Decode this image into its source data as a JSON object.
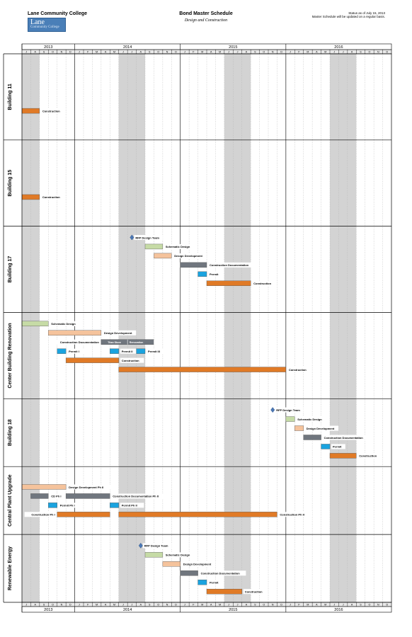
{
  "header": {
    "org": "Lane Community College",
    "logo": {
      "line1": "Lane",
      "line2": "Community College"
    },
    "title": "Bond Master Schedule",
    "subtitle": "Design and Construction",
    "status_line1": "Status as of July 15, 2013",
    "status_line2": "Master Schedule will be updated on a regular basis."
  },
  "colors": {
    "construction": "#e07a26",
    "schematic": "#c6dba6",
    "design": "#f5c39c",
    "docs": "#70767e",
    "permit": "#1aa3df",
    "milestone": "#4a77b5",
    "shade": "#d3d3d3"
  },
  "chart_data": {
    "type": "gantt",
    "timeline_start": "2013-07",
    "timeline_end": "2016-12",
    "month_letters": [
      "J",
      "F",
      "M",
      "A",
      "M",
      "J",
      "J",
      "A",
      "S",
      "O",
      "N",
      "D"
    ],
    "years": [
      {
        "label": "2013",
        "start": "2013-07",
        "end": "2013-12"
      },
      {
        "label": "2014",
        "start": "2014-01",
        "end": "2014-12"
      },
      {
        "label": "2015",
        "start": "2015-01",
        "end": "2015-12"
      },
      {
        "label": "2016",
        "start": "2016-01",
        "end": "2016-12"
      }
    ],
    "shaded_periods": [
      {
        "start": "2013-07",
        "end": "2013-08"
      },
      {
        "start": "2014-06",
        "end": "2014-08"
      },
      {
        "start": "2015-06",
        "end": "2015-08"
      },
      {
        "start": "2016-06",
        "end": "2016-08"
      }
    ],
    "sections": [
      {
        "name": "Building 11",
        "rows": 8,
        "tasks": [
          {
            "label": "Construction",
            "kind": "construction",
            "start": "2013-07",
            "end": "2013-08",
            "row": 5
          }
        ]
      },
      {
        "name": "Building 15",
        "rows": 8,
        "tasks": [
          {
            "label": "Construction",
            "kind": "construction",
            "start": "2013-07",
            "end": "2013-08",
            "row": 5
          }
        ]
      },
      {
        "name": "Building 17",
        "rows": 8,
        "tasks": [
          {
            "label": "RFP Design Team",
            "kind": "milestone",
            "start": "2014-07",
            "end": "2014-07",
            "row": 0
          },
          {
            "label": "Schematic Design",
            "kind": "schematic",
            "start": "2014-09",
            "end": "2014-10",
            "row": 1
          },
          {
            "label": "Design Development",
            "kind": "design",
            "start": "2014-10",
            "end": "2014-11",
            "row": 2
          },
          {
            "label": "Construction Documentation",
            "kind": "docs",
            "start": "2015-01",
            "end": "2015-03",
            "row": 3
          },
          {
            "label": "Permit",
            "kind": "permit",
            "start": "2015-03",
            "end": "2015-03",
            "row": 4
          },
          {
            "label": "Construction",
            "kind": "construction",
            "start": "2015-04",
            "end": "2015-08",
            "row": 5
          }
        ]
      },
      {
        "name": "Center Building Renovation",
        "rows": 8,
        "tasks": [
          {
            "label": "Schematic Design",
            "kind": "schematic",
            "start": "2013-07",
            "end": "2013-09",
            "row": 0
          },
          {
            "label": "Design Development",
            "kind": "design",
            "start": "2013-10",
            "end": "2014-03",
            "row": 1
          },
          {
            "label": "Construction Documentation",
            "kind": "docs",
            "start": "2014-04",
            "end": "2014-09",
            "row": 2,
            "label_pos": "left",
            "segments": [
              {
                "label": "Titan Store",
                "start": "2014-04",
                "end": "2014-06"
              },
              {
                "label": "Renovation",
                "start": "2014-06",
                "end": "2014-09"
              }
            ]
          },
          {
            "label": "Permit I",
            "kind": "permit",
            "start": "2013-11",
            "end": "2013-11",
            "row": 3
          },
          {
            "label": "Permit II",
            "kind": "permit",
            "start": "2014-05",
            "end": "2014-05",
            "row": 3
          },
          {
            "label": "Permit III",
            "kind": "permit",
            "start": "2014-08",
            "end": "2014-08",
            "row": 3
          },
          {
            "label": "Construction",
            "kind": "construction",
            "start": "2013-12",
            "end": "2014-05",
            "row": 4
          },
          {
            "label": "Construction",
            "kind": "construction",
            "start": "2014-06",
            "end": "2015-12",
            "row": 5
          }
        ]
      },
      {
        "name": "Building 18",
        "rows": 6,
        "tasks": [
          {
            "label": "RFP Design Team",
            "kind": "milestone",
            "start": "2015-11",
            "end": "2015-11",
            "row": 0
          },
          {
            "label": "Schematic Design",
            "kind": "schematic",
            "start": "2016-01",
            "end": "2016-01",
            "row": 1
          },
          {
            "label": "Design Development",
            "kind": "design",
            "start": "2016-02",
            "end": "2016-02",
            "row": 2
          },
          {
            "label": "Construction Documentation",
            "kind": "docs",
            "start": "2016-03",
            "end": "2016-04",
            "row": 3
          },
          {
            "label": "Permit",
            "kind": "permit",
            "start": "2016-05",
            "end": "2016-05",
            "row": 4
          },
          {
            "label": "Construction",
            "kind": "construction",
            "start": "2016-06",
            "end": "2016-08",
            "row": 5
          }
        ]
      },
      {
        "name": "Central Plant Upgrade",
        "rows": 6,
        "tasks": [
          {
            "label": "Design Development Ph II",
            "kind": "design",
            "start": "2013-07",
            "end": "2013-11",
            "row": 1
          },
          {
            "label": "CD Ph I",
            "kind": "docs",
            "start": "2013-08",
            "end": "2013-09",
            "row": 2
          },
          {
            "label": "Construction Documentation Ph II",
            "kind": "docs",
            "start": "2013-12",
            "end": "2014-04",
            "row": 2
          },
          {
            "label": "Permit Ph I",
            "kind": "permit",
            "start": "2013-10",
            "end": "2013-10",
            "row": 3
          },
          {
            "label": "Permit Ph II",
            "kind": "permit",
            "start": "2014-05",
            "end": "2014-05",
            "row": 3
          },
          {
            "label": "Construction Ph I",
            "kind": "construction",
            "start": "2013-11",
            "end": "2014-04",
            "row": 4,
            "label_pos": "left"
          },
          {
            "label": "Construction Ph II",
            "kind": "construction",
            "start": "2014-06",
            "end": "2015-11",
            "row": 4
          }
        ]
      },
      {
        "name": "Renewable Energy",
        "rows": 6,
        "tasks": [
          {
            "label": "RFP Design Team",
            "kind": "milestone",
            "start": "2014-08",
            "end": "2014-08",
            "row": 0
          },
          {
            "label": "Schematic Design",
            "kind": "schematic",
            "start": "2014-09",
            "end": "2014-10",
            "row": 1
          },
          {
            "label": "Design Development",
            "kind": "design",
            "start": "2014-11",
            "end": "2014-12",
            "row": 2
          },
          {
            "label": "Construction Documentation",
            "kind": "docs",
            "start": "2015-01",
            "end": "2015-02",
            "row": 3
          },
          {
            "label": "Permit",
            "kind": "permit",
            "start": "2015-03",
            "end": "2015-03",
            "row": 4
          },
          {
            "label": "Construction",
            "kind": "construction",
            "start": "2015-04",
            "end": "2015-07",
            "row": 5
          }
        ]
      }
    ]
  }
}
